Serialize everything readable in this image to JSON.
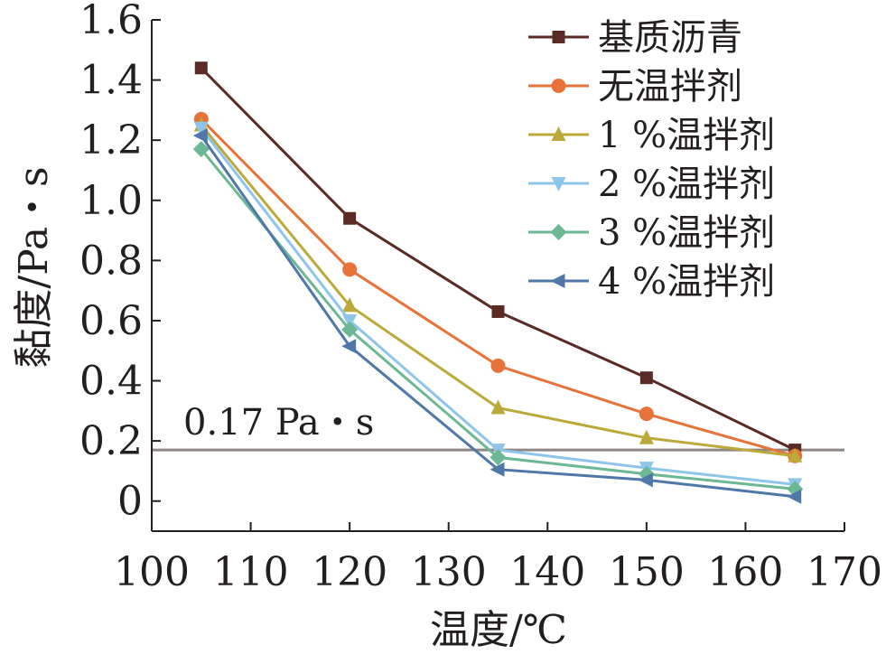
{
  "chart_data": {
    "type": "line",
    "xlabel": "温度/℃",
    "ylabel": "黏度/Pa・s",
    "xlim": [
      100,
      170
    ],
    "ylim": [
      -0.1,
      1.6
    ],
    "x_ticks": [
      "100",
      "110",
      "120",
      "130",
      "140",
      "150",
      "160",
      "170"
    ],
    "y_ticks": [
      "1.6",
      "1.4",
      "1.2",
      "1.0",
      "0.8",
      "0.6",
      "0.4",
      "0.2",
      "0"
    ],
    "x": [
      105,
      120,
      135,
      150,
      165
    ],
    "series": [
      {
        "name": "基质沥青",
        "color": "#5a2a25",
        "marker": "square",
        "values": [
          1.44,
          0.94,
          0.63,
          0.41,
          0.17
        ]
      },
      {
        "name": "无温拌剂",
        "color": "#e8733a",
        "marker": "circle",
        "values": [
          1.27,
          0.77,
          0.45,
          0.29,
          0.15
        ]
      },
      {
        "name": "1 %温拌剂",
        "color": "#bba93a",
        "marker": "triangle-up",
        "values": [
          1.25,
          0.65,
          0.31,
          0.21,
          0.15
        ]
      },
      {
        "name": "2 %温拌剂",
        "color": "#8ec5ea",
        "marker": "triangle-down",
        "values": [
          1.24,
          0.6,
          0.17,
          0.11,
          0.055
        ]
      },
      {
        "name": "3 %温拌剂",
        "color": "#6cb894",
        "marker": "diamond",
        "values": [
          1.17,
          0.57,
          0.145,
          0.09,
          0.04
        ]
      },
      {
        "name": "4 %温拌剂",
        "color": "#4f78a8",
        "marker": "triangle-left",
        "values": [
          1.215,
          0.515,
          0.105,
          0.07,
          0.015
        ]
      }
    ],
    "reference_line": {
      "value": 0.17,
      "label": "0.17 Pa・s",
      "color": "#8f8785"
    },
    "legend_position": "top-right",
    "grid": false
  }
}
